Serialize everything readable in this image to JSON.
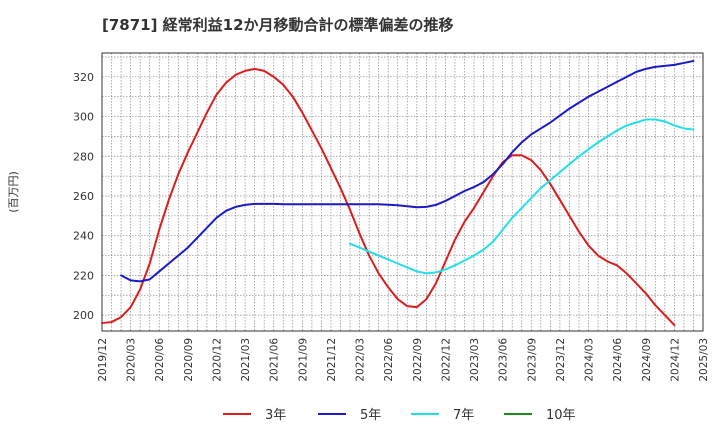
{
  "chart_data": {
    "type": "line",
    "title": "[7871]  経常利益12か月移動合計の標準偏差の推移",
    "ylabel": "(百万円)",
    "xlabel": "",
    "ylim": [
      192,
      332
    ],
    "yticks": [
      200,
      220,
      240,
      260,
      280,
      300,
      320
    ],
    "xticks": [
      "2019/12",
      "2020/03",
      "2020/06",
      "2020/09",
      "2020/12",
      "2021/03",
      "2021/06",
      "2021/09",
      "2021/12",
      "2022/03",
      "2022/06",
      "2022/09",
      "2022/12",
      "2023/03",
      "2023/06",
      "2023/09",
      "2023/12",
      "2024/03",
      "2024/06",
      "2024/09",
      "2024/12",
      "2025/03"
    ],
    "grid": true,
    "legend": "bottom",
    "series": [
      {
        "name": "3年",
        "color": "#dd1c1c",
        "values": [
          [
            "2019/12",
            196
          ],
          [
            "2020/01",
            196.5
          ],
          [
            "2020/02",
            199
          ],
          [
            "2020/03",
            204
          ],
          [
            "2020/04",
            213
          ],
          [
            "2020/05",
            226
          ],
          [
            "2020/06",
            243
          ],
          [
            "2020/07",
            258
          ],
          [
            "2020/08",
            271
          ],
          [
            "2020/09",
            282
          ],
          [
            "2020/10",
            292
          ],
          [
            "2020/11",
            302
          ],
          [
            "2020/12",
            311
          ],
          [
            "2021/01",
            317
          ],
          [
            "2021/02",
            321
          ],
          [
            "2021/03",
            323
          ],
          [
            "2021/04",
            324
          ],
          [
            "2021/05",
            323
          ],
          [
            "2021/06",
            320
          ],
          [
            "2021/07",
            316
          ],
          [
            "2021/08",
            310
          ],
          [
            "2021/09",
            302
          ],
          [
            "2021/10",
            293
          ],
          [
            "2021/11",
            284
          ],
          [
            "2021/12",
            274
          ],
          [
            "2022/01",
            264
          ],
          [
            "2022/02",
            253
          ],
          [
            "2022/03",
            241
          ],
          [
            "2022/04",
            230
          ],
          [
            "2022/05",
            221
          ],
          [
            "2022/06",
            214
          ],
          [
            "2022/07",
            208
          ],
          [
            "2022/08",
            204.5
          ],
          [
            "2022/09",
            204
          ],
          [
            "2022/10",
            208
          ],
          [
            "2022/11",
            216
          ],
          [
            "2022/12",
            227
          ],
          [
            "2023/01",
            238
          ],
          [
            "2023/02",
            247
          ],
          [
            "2023/03",
            254
          ],
          [
            "2023/04",
            262
          ],
          [
            "2023/05",
            270
          ],
          [
            "2023/06",
            277
          ],
          [
            "2023/07",
            280.5
          ],
          [
            "2023/08",
            280.5
          ],
          [
            "2023/09",
            278
          ],
          [
            "2023/10",
            273
          ],
          [
            "2023/11",
            266
          ],
          [
            "2023/12",
            258
          ],
          [
            "2024/01",
            250
          ],
          [
            "2024/02",
            242
          ],
          [
            "2024/03",
            235
          ],
          [
            "2024/04",
            230
          ],
          [
            "2024/05",
            227
          ],
          [
            "2024/06",
            225
          ],
          [
            "2024/07",
            221
          ],
          [
            "2024/08",
            216
          ],
          [
            "2024/09",
            211
          ],
          [
            "2024/10",
            205
          ],
          [
            "2024/11",
            200
          ],
          [
            "2024/12",
            195
          ]
        ]
      },
      {
        "name": "5年",
        "color": "#1b1bc8",
        "values": [
          [
            "2020/02",
            220
          ],
          [
            "2020/03",
            217.5
          ],
          [
            "2020/04",
            217
          ],
          [
            "2020/05",
            218
          ],
          [
            "2020/06",
            222
          ],
          [
            "2020/07",
            226
          ],
          [
            "2020/08",
            230
          ],
          [
            "2020/09",
            234
          ],
          [
            "2020/10",
            239
          ],
          [
            "2020/11",
            244
          ],
          [
            "2020/12",
            249
          ],
          [
            "2021/01",
            252.5
          ],
          [
            "2021/02",
            254.5
          ],
          [
            "2021/03",
            255.5
          ],
          [
            "2021/04",
            256
          ],
          [
            "2021/05",
            256
          ],
          [
            "2021/06",
            256
          ],
          [
            "2021/07",
            255.8
          ],
          [
            "2021/08",
            255.8
          ],
          [
            "2021/09",
            255.8
          ],
          [
            "2021/10",
            255.8
          ],
          [
            "2021/11",
            255.8
          ],
          [
            "2021/12",
            255.8
          ],
          [
            "2022/01",
            255.8
          ],
          [
            "2022/02",
            255.8
          ],
          [
            "2022/03",
            255.8
          ],
          [
            "2022/04",
            255.8
          ],
          [
            "2022/05",
            255.8
          ],
          [
            "2022/06",
            255.6
          ],
          [
            "2022/07",
            255.3
          ],
          [
            "2022/08",
            254.8
          ],
          [
            "2022/09",
            254.3
          ],
          [
            "2022/10",
            254.5
          ],
          [
            "2022/11",
            255.5
          ],
          [
            "2022/12",
            257.5
          ],
          [
            "2023/01",
            260
          ],
          [
            "2023/02",
            262.5
          ],
          [
            "2023/03",
            264.5
          ],
          [
            "2023/04",
            267
          ],
          [
            "2023/05",
            271
          ],
          [
            "2023/06",
            276
          ],
          [
            "2023/07",
            282
          ],
          [
            "2023/08",
            287
          ],
          [
            "2023/09",
            291
          ],
          [
            "2023/10",
            294
          ],
          [
            "2023/11",
            297
          ],
          [
            "2023/12",
            300.5
          ],
          [
            "2024/01",
            304
          ],
          [
            "2024/02",
            307
          ],
          [
            "2024/03",
            310
          ],
          [
            "2024/04",
            312.5
          ],
          [
            "2024/05",
            315
          ],
          [
            "2024/06",
            317.5
          ],
          [
            "2024/07",
            320
          ],
          [
            "2024/08",
            322.5
          ],
          [
            "2024/09",
            324
          ],
          [
            "2024/10",
            325
          ],
          [
            "2024/11",
            325.5
          ],
          [
            "2024/12",
            326
          ],
          [
            "2025/01",
            327
          ],
          [
            "2025/02",
            328
          ]
        ]
      },
      {
        "name": "7年",
        "color": "#22e0e8",
        "values": [
          [
            "2022/02",
            236
          ],
          [
            "2022/03",
            234
          ],
          [
            "2022/04",
            232
          ],
          [
            "2022/05",
            230
          ],
          [
            "2022/06",
            228
          ],
          [
            "2022/07",
            226
          ],
          [
            "2022/08",
            224
          ],
          [
            "2022/09",
            222
          ],
          [
            "2022/10",
            221
          ],
          [
            "2022/11",
            221.5
          ],
          [
            "2022/12",
            223
          ],
          [
            "2023/01",
            225
          ],
          [
            "2023/02",
            227.5
          ],
          [
            "2023/03",
            230
          ],
          [
            "2023/04",
            233
          ],
          [
            "2023/05",
            237
          ],
          [
            "2023/06",
            243
          ],
          [
            "2023/07",
            249
          ],
          [
            "2023/08",
            254
          ],
          [
            "2023/09",
            259
          ],
          [
            "2023/10",
            264
          ],
          [
            "2023/11",
            268
          ],
          [
            "2023/12",
            272
          ],
          [
            "2024/01",
            276
          ],
          [
            "2024/02",
            280
          ],
          [
            "2024/03",
            283.5
          ],
          [
            "2024/04",
            287
          ],
          [
            "2024/05",
            290
          ],
          [
            "2024/06",
            293
          ],
          [
            "2024/07",
            295.5
          ],
          [
            "2024/08",
            297
          ],
          [
            "2024/09",
            298.5
          ],
          [
            "2024/10",
            298.5
          ],
          [
            "2024/11",
            297.5
          ],
          [
            "2024/12",
            295.5
          ],
          [
            "2025/01",
            294
          ],
          [
            "2025/02",
            293.5
          ]
        ]
      },
      {
        "name": "10年",
        "color": "#1a8a1a",
        "values": []
      }
    ]
  }
}
